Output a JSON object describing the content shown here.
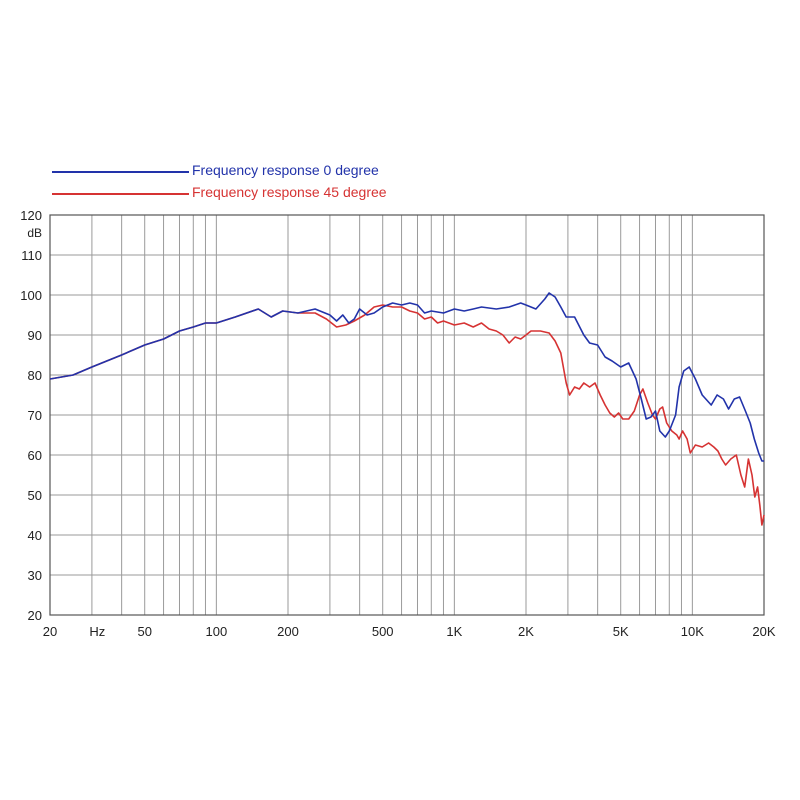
{
  "chart_data": {
    "type": "line",
    "xscale": "log",
    "xlim": [
      20,
      20000
    ],
    "ylim": [
      20,
      120
    ],
    "xlabel": "Hz",
    "ylabel": "dB",
    "grid": true,
    "legend_position": "top-left",
    "y_ticks": [
      20,
      30,
      40,
      50,
      60,
      70,
      80,
      90,
      100,
      110,
      120
    ],
    "x_ticks": [
      {
        "value": 20,
        "label": "20"
      },
      {
        "value": 50,
        "label": "50"
      },
      {
        "value": 100,
        "label": "100"
      },
      {
        "value": 200,
        "label": "200"
      },
      {
        "value": 500,
        "label": "500"
      },
      {
        "value": 1000,
        "label": "1K"
      },
      {
        "value": 2000,
        "label": "2K"
      },
      {
        "value": 5000,
        "label": "5K"
      },
      {
        "value": 10000,
        "label": "10K"
      },
      {
        "value": 20000,
        "label": "20K"
      }
    ],
    "series": [
      {
        "name": "Frequency response 0 degree",
        "color": "#2233aa",
        "points": [
          [
            20,
            79
          ],
          [
            25,
            80
          ],
          [
            30,
            82
          ],
          [
            40,
            85
          ],
          [
            50,
            87.5
          ],
          [
            60,
            89
          ],
          [
            70,
            91
          ],
          [
            80,
            92
          ],
          [
            90,
            93
          ],
          [
            100,
            93
          ],
          [
            120,
            94.5
          ],
          [
            150,
            96.5
          ],
          [
            170,
            94.5
          ],
          [
            190,
            96
          ],
          [
            220,
            95.5
          ],
          [
            260,
            96.5
          ],
          [
            300,
            95
          ],
          [
            320,
            93.5
          ],
          [
            340,
            95
          ],
          [
            360,
            93
          ],
          [
            380,
            94
          ],
          [
            400,
            96.5
          ],
          [
            430,
            95
          ],
          [
            460,
            95.5
          ],
          [
            500,
            97
          ],
          [
            550,
            98
          ],
          [
            600,
            97.5
          ],
          [
            650,
            98
          ],
          [
            700,
            97.5
          ],
          [
            750,
            95.5
          ],
          [
            800,
            96
          ],
          [
            900,
            95.5
          ],
          [
            1000,
            96.5
          ],
          [
            1100,
            96
          ],
          [
            1200,
            96.5
          ],
          [
            1300,
            97
          ],
          [
            1500,
            96.5
          ],
          [
            1700,
            97
          ],
          [
            1900,
            98
          ],
          [
            2000,
            97.5
          ],
          [
            2200,
            96.5
          ],
          [
            2400,
            99
          ],
          [
            2500,
            100.5
          ],
          [
            2650,
            99.5
          ],
          [
            2800,
            97
          ],
          [
            2950,
            94.5
          ],
          [
            3200,
            94.5
          ],
          [
            3500,
            90
          ],
          [
            3700,
            88
          ],
          [
            4000,
            87.5
          ],
          [
            4300,
            84.5
          ],
          [
            4600,
            83.5
          ],
          [
            5000,
            82
          ],
          [
            5400,
            83
          ],
          [
            5800,
            79
          ],
          [
            6100,
            74
          ],
          [
            6400,
            69
          ],
          [
            6700,
            69.5
          ],
          [
            7000,
            71
          ],
          [
            7300,
            66
          ],
          [
            7700,
            64.5
          ],
          [
            8000,
            66
          ],
          [
            8500,
            70
          ],
          [
            8800,
            77
          ],
          [
            9200,
            81
          ],
          [
            9700,
            82
          ],
          [
            10300,
            79
          ],
          [
            11000,
            75
          ],
          [
            12000,
            72.5
          ],
          [
            12700,
            75
          ],
          [
            13500,
            74
          ],
          [
            14200,
            71.5
          ],
          [
            15000,
            74
          ],
          [
            15800,
            74.5
          ],
          [
            16700,
            71
          ],
          [
            17500,
            68
          ],
          [
            18200,
            64
          ],
          [
            19000,
            60.5
          ],
          [
            19600,
            58.5
          ],
          [
            20000,
            58.5
          ]
        ]
      },
      {
        "name": "Frequency response 45 degree",
        "color": "#d63333",
        "points": [
          [
            20,
            79
          ],
          [
            25,
            80
          ],
          [
            30,
            82
          ],
          [
            40,
            85
          ],
          [
            50,
            87.5
          ],
          [
            60,
            89
          ],
          [
            70,
            91
          ],
          [
            80,
            92
          ],
          [
            90,
            93
          ],
          [
            100,
            93
          ],
          [
            120,
            94.5
          ],
          [
            150,
            96.5
          ],
          [
            170,
            94.5
          ],
          [
            190,
            96
          ],
          [
            220,
            95.5
          ],
          [
            260,
            95.5
          ],
          [
            290,
            94
          ],
          [
            320,
            92
          ],
          [
            350,
            92.5
          ],
          [
            380,
            93.5
          ],
          [
            420,
            95
          ],
          [
            460,
            97
          ],
          [
            500,
            97.5
          ],
          [
            550,
            97
          ],
          [
            600,
            97
          ],
          [
            650,
            96
          ],
          [
            700,
            95.5
          ],
          [
            750,
            94
          ],
          [
            800,
            94.5
          ],
          [
            850,
            93
          ],
          [
            900,
            93.5
          ],
          [
            1000,
            92.5
          ],
          [
            1100,
            93
          ],
          [
            1200,
            92
          ],
          [
            1300,
            93
          ],
          [
            1400,
            91.5
          ],
          [
            1500,
            91
          ],
          [
            1600,
            90
          ],
          [
            1700,
            88
          ],
          [
            1800,
            89.5
          ],
          [
            1900,
            89
          ],
          [
            2000,
            90
          ],
          [
            2100,
            91
          ],
          [
            2300,
            91
          ],
          [
            2500,
            90.5
          ],
          [
            2650,
            88.5
          ],
          [
            2800,
            85.5
          ],
          [
            2950,
            78
          ],
          [
            3050,
            75
          ],
          [
            3200,
            77
          ],
          [
            3350,
            76.5
          ],
          [
            3500,
            78
          ],
          [
            3700,
            77
          ],
          [
            3900,
            78
          ],
          [
            4100,
            75
          ],
          [
            4300,
            72.5
          ],
          [
            4500,
            70.5
          ],
          [
            4700,
            69.5
          ],
          [
            4900,
            70.5
          ],
          [
            5100,
            69
          ],
          [
            5400,
            69
          ],
          [
            5700,
            71
          ],
          [
            6000,
            75
          ],
          [
            6200,
            76.5
          ],
          [
            6500,
            73
          ],
          [
            6800,
            70
          ],
          [
            7000,
            69
          ],
          [
            7300,
            71.5
          ],
          [
            7500,
            72
          ],
          [
            7800,
            68
          ],
          [
            8200,
            66
          ],
          [
            8600,
            65
          ],
          [
            8800,
            64
          ],
          [
            9100,
            66
          ],
          [
            9500,
            64
          ],
          [
            9800,
            60.5
          ],
          [
            10300,
            62.5
          ],
          [
            11000,
            62
          ],
          [
            11700,
            63
          ],
          [
            12300,
            62
          ],
          [
            12800,
            61
          ],
          [
            13300,
            59
          ],
          [
            13800,
            57.5
          ],
          [
            14500,
            59
          ],
          [
            15300,
            60
          ],
          [
            16000,
            55
          ],
          [
            16600,
            52
          ],
          [
            17200,
            59
          ],
          [
            17800,
            55
          ],
          [
            18300,
            49.5
          ],
          [
            18800,
            52
          ],
          [
            19200,
            47.5
          ],
          [
            19600,
            42.5
          ],
          [
            20000,
            45
          ]
        ]
      }
    ]
  }
}
